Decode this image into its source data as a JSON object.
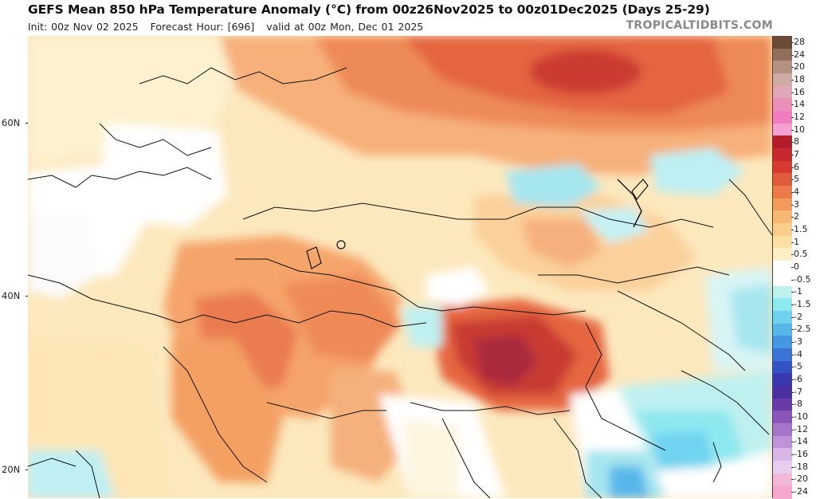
{
  "header": {
    "title": "GEFS Mean 850 hPa Temperature Anomaly (°C) from 00z26Nov2025 to 00z01Dec2025 (Days 25-29)",
    "init": "Init: 00z Nov 02 2025",
    "forecast_hour": "Forecast Hour: [696]",
    "valid": "valid at 00z Mon, Dec 01 2025",
    "brand": "TROPICALTIDBITS.COM"
  },
  "map": {
    "lat_labels": [
      "60N",
      "40N",
      "20N"
    ],
    "colorbar": {
      "labels": [
        "28",
        "24",
        "20",
        "18",
        "16",
        "14",
        "12",
        "10",
        "8",
        "7",
        "6",
        "5",
        "4",
        "3",
        "2",
        "1.5",
        "1",
        "0.5",
        "0",
        "-0.5",
        "-1",
        "-1.5",
        "-2",
        "-2.5",
        "-3",
        "-4",
        "-5",
        "-6",
        "-7",
        "-8",
        "-10",
        "-12",
        "-14",
        "-16",
        "-18",
        "-20",
        "-24"
      ],
      "colors": [
        "#6b4a37",
        "#8f6f5c",
        "#b49183",
        "#cfa9a4",
        "#e1a6b8",
        "#ea8fb9",
        "#f07dc0",
        "#f5a0d2",
        "#b31c2a",
        "#c62a2f",
        "#d73b2f",
        "#e05a3c",
        "#ea7a4a",
        "#f19a5c",
        "#f6b874",
        "#f9cd8b",
        "#fce0a3",
        "#fdf0c6",
        "#ffffff",
        "#ffffff",
        "#bff0f0",
        "#8ee8ef",
        "#6fd3ef",
        "#57b6ea",
        "#4796e4",
        "#3a75d6",
        "#3552c4",
        "#3a3ab0",
        "#4a2fa0",
        "#6a3aa8",
        "#8a56bb",
        "#a674c8",
        "#bf93d8",
        "#d8b6e8",
        "#e9cdee",
        "#f3b8d8",
        "#f7a8cf"
      ]
    }
  }
}
